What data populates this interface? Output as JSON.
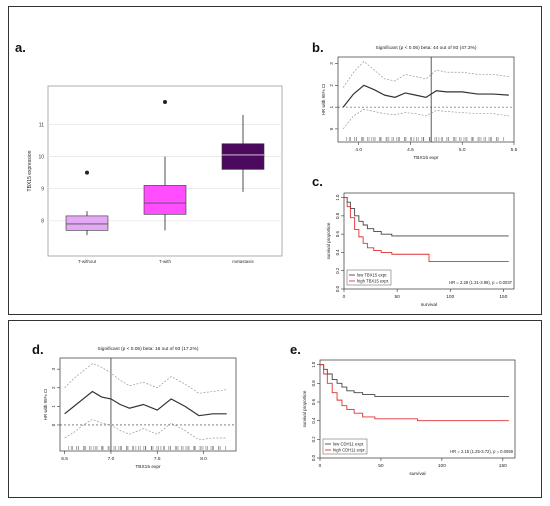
{
  "panels": {
    "a": {
      "letter": "a."
    },
    "b": {
      "letter": "b."
    },
    "c": {
      "letter": "c."
    },
    "d": {
      "letter": "d."
    },
    "e": {
      "letter": "e."
    }
  },
  "chart_data": [
    {
      "id": "a",
      "type": "box",
      "ylabel": "TBX15 expression",
      "categories": [
        "T-without",
        "T-with",
        "metastasis"
      ],
      "colors": [
        "#e4a9f4",
        "#ff4dff",
        "#4b0a5e"
      ],
      "yticks": [
        8,
        9,
        10,
        11
      ],
      "ylim": [
        6.9,
        12.2
      ],
      "boxes": [
        {
          "whisker_low": 7.55,
          "q1": 7.7,
          "median": 7.9,
          "q3": 8.15,
          "whisker_high": 8.3,
          "outliers": [
            9.5
          ]
        },
        {
          "whisker_low": 7.7,
          "q1": 8.2,
          "median": 8.55,
          "q3": 9.1,
          "whisker_high": 10.0,
          "outliers": [
            11.7
          ]
        },
        {
          "whisker_low": 8.9,
          "q1": 9.6,
          "median": 10.05,
          "q3": 10.4,
          "whisker_high": 11.3,
          "outliers": []
        }
      ]
    },
    {
      "id": "b",
      "type": "line",
      "title": "Significant (p < 0.05) beta: 44 out of 93 (47.3%)",
      "xlabel": "TBX15 expr",
      "ylabel": "HR with 95% CI",
      "xticks": [
        4.0,
        4.5,
        5.0,
        5.5
      ],
      "yticks": [
        0,
        1,
        2,
        3
      ],
      "xlim": [
        3.8,
        5.5
      ],
      "ylim": [
        -0.6,
        3.3
      ],
      "ref_line_y": 1.0,
      "cutoff_x": 4.7,
      "series": [
        {
          "role": "upper",
          "x": [
            3.85,
            3.95,
            4.05,
            4.15,
            4.25,
            4.35,
            4.45,
            4.55,
            4.65,
            4.75,
            4.85,
            5.0,
            5.15,
            5.3,
            5.45
          ],
          "y": [
            1.9,
            2.6,
            3.1,
            2.7,
            2.3,
            2.2,
            2.5,
            2.4,
            2.3,
            2.7,
            2.6,
            2.6,
            2.5,
            2.5,
            2.4
          ]
        },
        {
          "role": "estimate",
          "x": [
            3.85,
            3.95,
            4.05,
            4.15,
            4.25,
            4.35,
            4.45,
            4.55,
            4.65,
            4.75,
            4.85,
            5.0,
            5.15,
            5.3,
            5.45
          ],
          "y": [
            1.0,
            1.6,
            2.0,
            1.8,
            1.55,
            1.45,
            1.65,
            1.55,
            1.45,
            1.75,
            1.7,
            1.7,
            1.6,
            1.6,
            1.55
          ]
        },
        {
          "role": "lower",
          "x": [
            3.85,
            3.95,
            4.05,
            4.15,
            4.25,
            4.35,
            4.45,
            4.55,
            4.65,
            4.75,
            4.85,
            5.0,
            5.15,
            5.3,
            5.45
          ],
          "y": [
            0.0,
            0.6,
            0.9,
            0.8,
            0.7,
            0.65,
            0.75,
            0.7,
            0.6,
            0.85,
            0.8,
            0.75,
            0.7,
            0.7,
            0.6
          ]
        }
      ]
    },
    {
      "id": "c",
      "type": "line",
      "xlabel": "survival",
      "ylabel": "survival proportion",
      "xticks": [
        0,
        50,
        100,
        150
      ],
      "yticks": [
        0.0,
        0.2,
        0.4,
        0.6,
        0.8,
        1.0
      ],
      "xlim": [
        0,
        160
      ],
      "ylim": [
        0,
        1.05
      ],
      "legend": [
        "low TBX15 expr.",
        "high TBX15 expr."
      ],
      "annotation": "HR = 2.28 (1.31-3.99), p = 0.0037",
      "series": [
        {
          "name": "low TBX15 expr.",
          "color": "#444444",
          "x": [
            0,
            3,
            6,
            10,
            14,
            18,
            22,
            28,
            35,
            45,
            60,
            80,
            100,
            130,
            155
          ],
          "y": [
            1.0,
            0.95,
            0.88,
            0.8,
            0.74,
            0.7,
            0.66,
            0.63,
            0.6,
            0.58,
            0.58,
            0.58,
            0.58,
            0.58,
            0.58
          ]
        },
        {
          "name": "high TBX15 expr.",
          "color": "#e03030",
          "x": [
            0,
            3,
            6,
            10,
            14,
            18,
            22,
            28,
            35,
            45,
            60,
            80,
            100,
            130,
            155
          ],
          "y": [
            1.0,
            0.9,
            0.78,
            0.65,
            0.57,
            0.5,
            0.45,
            0.42,
            0.4,
            0.38,
            0.38,
            0.3,
            0.3,
            0.3,
            0.3
          ]
        }
      ]
    },
    {
      "id": "d",
      "type": "line",
      "title": "Significant (p < 0.05) beta: 16 out of 93 (17.2%)",
      "xlabel": "TBX15 expr",
      "ylabel": "HR with 95% CI",
      "xticks": [
        6.5,
        7.0,
        7.5,
        8.0
      ],
      "yticks": [
        0,
        1,
        2,
        3
      ],
      "xlim": [
        6.45,
        8.35
      ],
      "ylim": [
        -1.4,
        3.6
      ],
      "ref_line_y": 0.0,
      "cutoff_x": 7.0,
      "series": [
        {
          "role": "upper",
          "x": [
            6.5,
            6.6,
            6.7,
            6.8,
            6.9,
            7.0,
            7.1,
            7.2,
            7.35,
            7.5,
            7.65,
            7.8,
            7.95,
            8.1,
            8.25
          ],
          "y": [
            2.0,
            2.5,
            2.9,
            3.3,
            3.1,
            2.8,
            2.4,
            2.1,
            2.3,
            2.0,
            2.6,
            2.2,
            1.7,
            1.8,
            1.9
          ]
        },
        {
          "role": "estimate",
          "x": [
            6.5,
            6.6,
            6.7,
            6.8,
            6.9,
            7.0,
            7.1,
            7.2,
            7.35,
            7.5,
            7.65,
            7.8,
            7.95,
            8.1,
            8.25
          ],
          "y": [
            0.6,
            1.0,
            1.4,
            1.8,
            1.5,
            1.4,
            1.1,
            0.9,
            1.1,
            0.8,
            1.4,
            1.0,
            0.5,
            0.6,
            0.6
          ]
        },
        {
          "role": "lower",
          "x": [
            6.5,
            6.6,
            6.7,
            6.8,
            6.9,
            7.0,
            7.1,
            7.2,
            7.35,
            7.5,
            7.65,
            7.8,
            7.95,
            8.1,
            8.25
          ],
          "y": [
            -0.7,
            -0.4,
            0.0,
            0.3,
            0.1,
            0.0,
            -0.3,
            -0.5,
            -0.2,
            -0.5,
            0.1,
            -0.3,
            -0.8,
            -0.7,
            -0.7
          ]
        }
      ]
    },
    {
      "id": "e",
      "type": "line",
      "xlabel": "survival",
      "ylabel": "survival proportion",
      "xticks": [
        0,
        50,
        100,
        150
      ],
      "yticks": [
        0.0,
        0.2,
        0.4,
        0.6,
        0.8,
        1.0
      ],
      "xlim": [
        0,
        160
      ],
      "ylim": [
        0,
        1.05
      ],
      "legend": [
        "low CDH11 expr.",
        "high CDH11 expr."
      ],
      "annotation": "HR = 2.15 (1.25-3.72), p = 0.0059",
      "series": [
        {
          "name": "low CDH11 expr.",
          "color": "#444444",
          "x": [
            0,
            3,
            6,
            10,
            14,
            18,
            22,
            28,
            35,
            45,
            60,
            80,
            100,
            130,
            155
          ],
          "y": [
            1.0,
            0.95,
            0.9,
            0.84,
            0.8,
            0.76,
            0.72,
            0.7,
            0.68,
            0.66,
            0.66,
            0.66,
            0.66,
            0.66,
            0.66
          ]
        },
        {
          "name": "high CDH11 expr.",
          "color": "#e03030",
          "x": [
            0,
            3,
            6,
            10,
            14,
            18,
            22,
            28,
            35,
            45,
            60,
            80,
            100,
            130,
            155
          ],
          "y": [
            1.0,
            0.9,
            0.8,
            0.7,
            0.62,
            0.56,
            0.52,
            0.48,
            0.44,
            0.42,
            0.42,
            0.4,
            0.4,
            0.4,
            0.4
          ]
        }
      ]
    }
  ]
}
